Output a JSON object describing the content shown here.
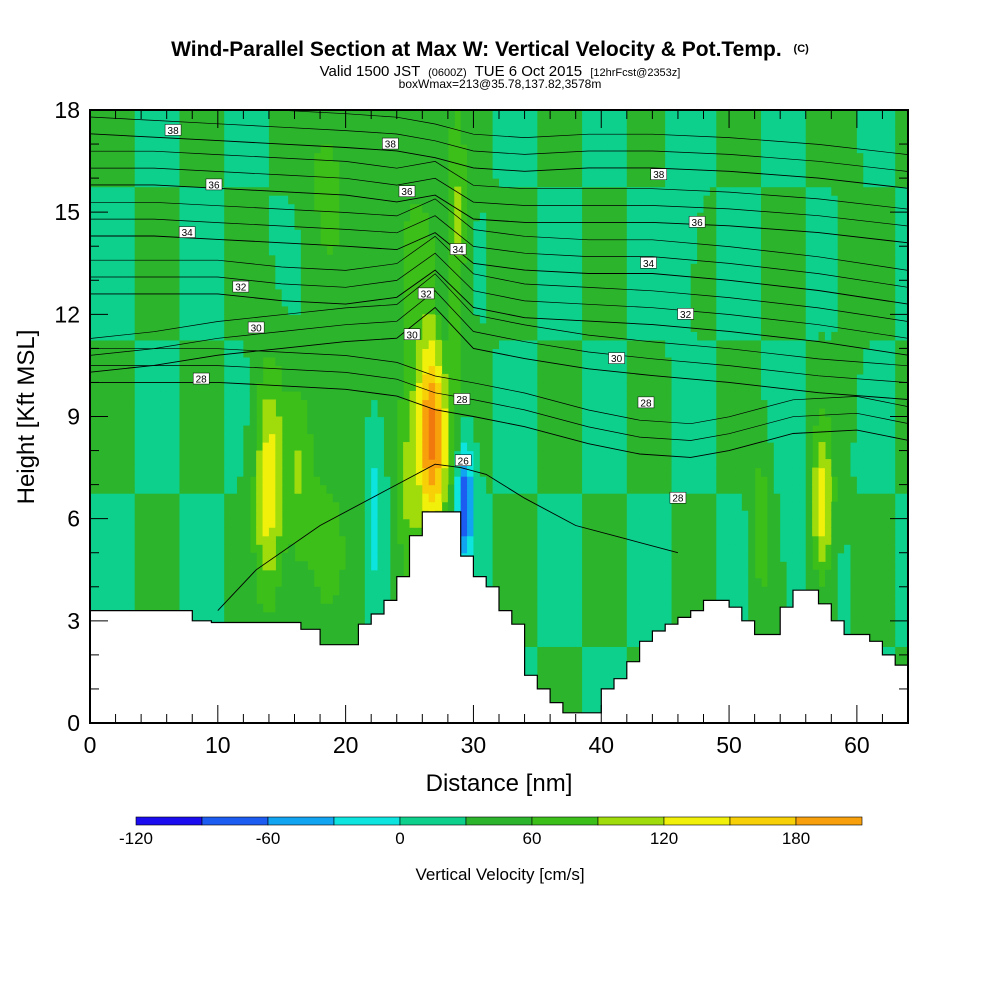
{
  "title": {
    "main": "Wind-Parallel Section at Max W: Vertical Velocity & Pot.Temp.",
    "mark": "(C)"
  },
  "subtitle": {
    "valid": "Valid 1500 JST",
    "utc": "(0600Z)",
    "date": "TUE 6 Oct 2015",
    "fcst": "[12hrFcst@2353z]"
  },
  "boxline": "boxWmax=213@35.78,137.82,3578m",
  "colors": {
    "background_field": "#3dbf1a",
    "terrain": "#ffffff",
    "contour": "#000000",
    "scale": [
      "#1b0cf0",
      "#1c5cf0",
      "#11a4f0",
      "#0de4e0",
      "#0cd08c",
      "#2cb42c",
      "#3dbf1a",
      "#a0dc0c",
      "#f0f00a",
      "#f8d008",
      "#f8a00c",
      "#f0780c",
      "#f0501e",
      "#e01e1e",
      "#c00a3a",
      "#8c0a5c",
      "#5c0a7c"
    ]
  },
  "chart_data": {
    "type": "heatmap",
    "title": "Wind-Parallel Section at Max W: Vertical Velocity & Pot.Temp.",
    "xlabel": "Distance [nm]",
    "ylabel": "Height [Kft MSL]",
    "xlim": [
      0,
      64
    ],
    "ylim": [
      0,
      18
    ],
    "xticks": [
      0,
      10,
      20,
      30,
      40,
      50,
      60
    ],
    "yticks": [
      0,
      3,
      6,
      9,
      12,
      15,
      18
    ],
    "colorbar": {
      "label": "Vertical Velocity [cm/s]",
      "min": -120,
      "max": 210,
      "step": 30,
      "ticks": [
        -120,
        -60,
        0,
        60,
        120,
        180
      ]
    },
    "terrain": {
      "x": [
        0,
        7.5,
        8,
        9.5,
        10.5,
        15.5,
        16.5,
        17,
        18,
        20.5,
        21,
        22,
        23,
        24,
        25,
        26,
        27,
        28,
        29,
        30,
        31,
        32,
        33,
        34,
        35,
        36,
        37,
        38,
        39,
        40,
        41,
        42,
        43,
        44,
        45,
        46,
        47,
        48,
        49,
        50,
        51,
        52,
        53,
        54,
        55,
        56,
        57,
        58,
        59,
        60,
        61,
        62,
        63,
        64
      ],
      "y": [
        3.3,
        3.3,
        3.0,
        2.95,
        2.95,
        2.95,
        2.75,
        2.75,
        2.3,
        2.3,
        2.9,
        3.2,
        3.6,
        4.3,
        5.5,
        6.2,
        6.2,
        6.2,
        4.9,
        4.3,
        4.0,
        3.3,
        2.9,
        1.4,
        1.0,
        0.6,
        0.3,
        0.3,
        0.3,
        1.0,
        1.3,
        1.8,
        2.4,
        2.7,
        2.9,
        3.1,
        3.3,
        3.6,
        3.6,
        3.4,
        3.0,
        2.6,
        2.6,
        3.4,
        3.9,
        3.9,
        3.5,
        3.0,
        2.6,
        2.6,
        2.4,
        2.0,
        1.7,
        1.7
      ]
    },
    "w_features": [
      {
        "x": 26.8,
        "y": 8.5,
        "sx": 0.9,
        "sy": 2.0,
        "w": 200
      },
      {
        "x": 28.6,
        "y": 14.5,
        "sx": 0.6,
        "sy": 2.5,
        "w": 60
      },
      {
        "x": 29.3,
        "y": 6.5,
        "sx": 0.5,
        "sy": 1.2,
        "w": -120
      },
      {
        "x": 27.6,
        "y": 12.0,
        "sx": 0.4,
        "sy": 3.0,
        "w": -40
      },
      {
        "x": 14.0,
        "y": 7.0,
        "sx": 0.8,
        "sy": 2.4,
        "w": 110
      },
      {
        "x": 16.3,
        "y": 7.2,
        "sx": 0.7,
        "sy": 2.0,
        "w": 50
      },
      {
        "x": 18.5,
        "y": 5.5,
        "sx": 1.5,
        "sy": 2.5,
        "w": 35
      },
      {
        "x": 22.3,
        "y": 6.5,
        "sx": 0.5,
        "sy": 2.0,
        "w": -40
      },
      {
        "x": 24.8,
        "y": 6.7,
        "sx": 0.6,
        "sy": 2.2,
        "w": 55
      },
      {
        "x": 18.5,
        "y": 16.0,
        "sx": 1.2,
        "sy": 2.0,
        "w": 40
      },
      {
        "x": 25.0,
        "y": 14.0,
        "sx": 2.5,
        "sy": 3.0,
        "w": 30
      },
      {
        "x": 52.5,
        "y": 5.8,
        "sx": 0.5,
        "sy": 1.5,
        "w": 60
      },
      {
        "x": 57.3,
        "y": 6.4,
        "sx": 0.6,
        "sy": 1.6,
        "w": 110
      },
      {
        "x": 55.0,
        "y": 6.0,
        "sx": 0.5,
        "sy": 1.5,
        "w": -35
      },
      {
        "x": 46.5,
        "y": 15.5,
        "sx": 0.6,
        "sy": 2.0,
        "w": -30
      },
      {
        "x": 59.5,
        "y": 13.5,
        "sx": 0.5,
        "sy": 2.5,
        "w": 25
      }
    ],
    "theta_contours": [
      {
        "label": "26",
        "label_x": 29.0,
        "y": [
          3.3,
          4.5,
          5.8,
          7.0,
          7.6,
          7.5,
          7.3,
          6.6,
          5.8,
          5.4,
          5.0
        ],
        "x": [
          10,
          13,
          18,
          24,
          27,
          29,
          31,
          34,
          38,
          42,
          46
        ]
      },
      {
        "label": "28",
        "label_x": 6.0,
        "y": [
          10.0,
          10.0,
          10.0,
          9.9,
          9.8,
          9.6,
          9.2,
          9.0,
          8.7,
          8.2,
          7.9,
          7.8,
          8.0,
          8.5,
          8.6,
          8.3
        ],
        "x": [
          0,
          5,
          10,
          15,
          20,
          24,
          27,
          30,
          34,
          39,
          43,
          47,
          50,
          55,
          60,
          64
        ]
      },
      {
        "label": "30",
        "label_x": 13.0,
        "y": [
          10.3,
          10.5,
          10.8,
          11.0,
          11.2,
          11.3,
          12.2,
          11.0,
          10.7,
          10.4,
          10.2,
          10.0,
          9.7,
          9.5
        ],
        "x": [
          0,
          5,
          10,
          15,
          20,
          24,
          27,
          30,
          34,
          39,
          44,
          50,
          57,
          64
        ]
      },
      {
        "label": "32",
        "label_x": 12.5,
        "y": [
          12.6,
          12.6,
          12.6,
          12.4,
          12.3,
          12.5,
          13.3,
          12.2,
          11.9,
          11.8,
          11.7,
          11.5,
          11.2,
          10.8
        ],
        "x": [
          0,
          5,
          10,
          15,
          20,
          24,
          27,
          30,
          34,
          39,
          44,
          50,
          57,
          64
        ]
      },
      {
        "label": "34",
        "label_x": 8.0,
        "y": [
          14.3,
          14.3,
          14.2,
          14.1,
          14.0,
          13.9,
          14.4,
          13.5,
          13.3,
          13.2,
          13.2,
          13.0,
          12.7,
          12.3
        ],
        "x": [
          0,
          5,
          10,
          15,
          20,
          24,
          27,
          30,
          34,
          39,
          44,
          50,
          57,
          64
        ]
      },
      {
        "label": "36",
        "label_x": 10.0,
        "y": [
          15.8,
          15.8,
          15.7,
          15.6,
          15.5,
          15.3,
          15.5,
          14.8,
          14.7,
          14.7,
          14.7,
          14.6,
          14.4,
          14.1
        ],
        "x": [
          0,
          5,
          10,
          15,
          20,
          24,
          27,
          30,
          34,
          39,
          44,
          50,
          57,
          64
        ]
      },
      {
        "label": "38",
        "label_x": 8.5,
        "y": [
          17.3,
          17.2,
          17.1,
          17.0,
          16.9,
          16.8,
          16.6,
          16.3,
          16.2,
          16.3,
          16.3,
          16.2,
          16.0,
          15.7
        ],
        "x": [
          0,
          5,
          10,
          15,
          20,
          24,
          27,
          30,
          34,
          39,
          44,
          50,
          57,
          64
        ]
      }
    ],
    "contour_labels": [
      {
        "text": "38",
        "x": 6.5,
        "y": 17.4
      },
      {
        "text": "38",
        "x": 23.5,
        "y": 17.0
      },
      {
        "text": "36",
        "x": 9.7,
        "y": 15.8
      },
      {
        "text": "36",
        "x": 24.8,
        "y": 15.6
      },
      {
        "text": "38",
        "x": 44.5,
        "y": 16.1
      },
      {
        "text": "36",
        "x": 47.5,
        "y": 14.7
      },
      {
        "text": "34",
        "x": 7.6,
        "y": 14.4
      },
      {
        "text": "34",
        "x": 28.8,
        "y": 13.9
      },
      {
        "text": "34",
        "x": 43.7,
        "y": 13.5
      },
      {
        "text": "32",
        "x": 11.8,
        "y": 12.8
      },
      {
        "text": "32",
        "x": 26.3,
        "y": 12.6
      },
      {
        "text": "32",
        "x": 46.6,
        "y": 12.0
      },
      {
        "text": "30",
        "x": 13.0,
        "y": 11.6
      },
      {
        "text": "30",
        "x": 25.2,
        "y": 11.4
      },
      {
        "text": "30",
        "x": 41.2,
        "y": 10.7
      },
      {
        "text": "28",
        "x": 8.7,
        "y": 10.1
      },
      {
        "text": "28",
        "x": 29.1,
        "y": 9.5
      },
      {
        "text": "28",
        "x": 43.5,
        "y": 9.4
      },
      {
        "text": "28",
        "x": 46.0,
        "y": 6.6
      },
      {
        "text": "26",
        "x": 29.2,
        "y": 7.7
      }
    ]
  }
}
